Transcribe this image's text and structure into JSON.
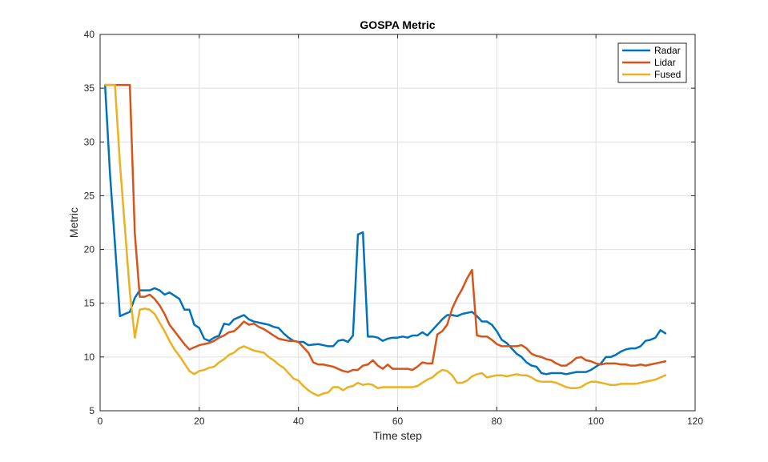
{
  "chart_data": {
    "type": "line",
    "title": "GOSPA Metric",
    "xlabel": "Time step",
    "ylabel": "Metric",
    "xlim": [
      0,
      120
    ],
    "ylim": [
      5,
      40
    ],
    "xticks": [
      0,
      20,
      40,
      60,
      80,
      100,
      120
    ],
    "yticks": [
      5,
      10,
      15,
      20,
      25,
      30,
      35,
      40
    ],
    "xtick_labels": [
      "0",
      "20",
      "40",
      "60",
      "80",
      "100",
      "120"
    ],
    "ytick_labels": [
      "5",
      "10",
      "15",
      "20",
      "25",
      "30",
      "35",
      "40"
    ],
    "grid": true,
    "legend_position": "top-right",
    "series": [
      {
        "name": "Radar",
        "color": "#0072BD",
        "x": [
          1,
          2,
          3,
          4,
          5,
          6,
          7,
          8,
          9,
          10,
          11,
          12,
          13,
          14,
          15,
          16,
          17,
          18,
          19,
          20,
          21,
          22,
          23,
          24,
          25,
          26,
          27,
          28,
          29,
          30,
          31,
          32,
          33,
          34,
          35,
          36,
          37,
          38,
          39,
          40,
          41,
          42,
          43,
          44,
          45,
          46,
          47,
          48,
          49,
          50,
          51,
          52,
          53,
          54,
          55,
          56,
          57,
          58,
          59,
          60,
          61,
          62,
          63,
          64,
          65,
          66,
          67,
          68,
          69,
          70,
          71,
          72,
          73,
          74,
          75,
          76,
          77,
          78,
          79,
          80,
          81,
          82,
          83,
          84,
          85,
          86,
          87,
          88,
          89,
          90,
          91,
          92,
          93,
          94,
          95,
          96,
          97,
          98,
          99,
          100,
          101,
          102,
          103,
          104,
          105,
          106,
          107,
          108,
          109,
          110,
          111,
          112,
          113,
          114
        ],
        "values": [
          35.3,
          27.0,
          20.5,
          13.8,
          14.0,
          14.2,
          15.5,
          16.2,
          16.2,
          16.2,
          16.4,
          16.2,
          15.8,
          16.0,
          15.7,
          15.4,
          14.4,
          14.4,
          13.0,
          12.7,
          11.7,
          11.5,
          11.8,
          12.0,
          13.1,
          13.0,
          13.5,
          13.7,
          13.9,
          13.5,
          13.3,
          13.2,
          13.1,
          13.0,
          12.8,
          12.7,
          12.2,
          11.8,
          11.5,
          11.4,
          11.4,
          11.1,
          11.15,
          11.2,
          11.1,
          11.0,
          11.0,
          11.5,
          11.6,
          11.4,
          12.0,
          21.4,
          21.6,
          11.9,
          11.9,
          11.8,
          11.5,
          11.7,
          11.8,
          11.8,
          11.9,
          11.8,
          12.0,
          12.0,
          12.3,
          12.0,
          12.5,
          13.0,
          13.5,
          13.9,
          13.9,
          13.8,
          14.0,
          14.1,
          14.2,
          13.8,
          13.3,
          13.3,
          13.0,
          12.4,
          11.6,
          11.3,
          10.8,
          10.3,
          10.0,
          9.5,
          9.2,
          9.1,
          8.5,
          8.4,
          8.5,
          8.5,
          8.5,
          8.4,
          8.5,
          8.6,
          8.6,
          8.6,
          8.8,
          9.1,
          9.4,
          10.0,
          10.0,
          10.2,
          10.5,
          10.7,
          10.8,
          10.8,
          11.0,
          11.5,
          11.6,
          11.8,
          12.5,
          12.2
        ]
      },
      {
        "name": "Lidar",
        "color": "#D95319",
        "x": [
          1,
          2,
          3,
          4,
          5,
          6,
          7,
          8,
          9,
          10,
          11,
          12,
          13,
          14,
          15,
          16,
          17,
          18,
          19,
          20,
          21,
          22,
          23,
          24,
          25,
          26,
          27,
          28,
          29,
          30,
          31,
          32,
          33,
          34,
          35,
          36,
          37,
          38,
          39,
          40,
          41,
          42,
          43,
          44,
          45,
          46,
          47,
          48,
          49,
          50,
          51,
          52,
          53,
          54,
          55,
          56,
          57,
          58,
          59,
          60,
          61,
          62,
          63,
          64,
          65,
          66,
          67,
          68,
          69,
          70,
          71,
          72,
          73,
          74,
          75,
          76,
          77,
          78,
          79,
          80,
          81,
          82,
          83,
          84,
          85,
          86,
          87,
          88,
          89,
          90,
          91,
          92,
          93,
          94,
          95,
          96,
          97,
          98,
          99,
          100,
          101,
          102,
          103,
          104,
          105,
          106,
          107,
          108,
          109,
          110,
          111,
          112,
          113,
          114
        ],
        "values": [
          35.3,
          35.3,
          35.3,
          35.3,
          35.3,
          35.3,
          21.5,
          15.6,
          15.6,
          15.8,
          15.4,
          14.8,
          14.0,
          13.0,
          12.4,
          11.8,
          11.2,
          10.7,
          10.9,
          11.1,
          11.2,
          11.3,
          11.5,
          11.8,
          12.0,
          12.3,
          12.4,
          12.8,
          13.3,
          13.0,
          13.1,
          12.8,
          12.6,
          12.3,
          12.0,
          11.7,
          11.6,
          11.5,
          11.5,
          11.4,
          10.9,
          10.4,
          9.5,
          9.3,
          9.3,
          9.2,
          9.1,
          8.9,
          8.7,
          8.6,
          8.8,
          8.8,
          9.2,
          9.3,
          9.7,
          9.2,
          8.9,
          9.3,
          8.9,
          8.9,
          8.9,
          8.9,
          8.8,
          9.1,
          9.5,
          9.4,
          9.4,
          12.1,
          12.4,
          13.0,
          14.5,
          15.5,
          16.3,
          17.3,
          18.1,
          12.0,
          11.9,
          11.9,
          11.6,
          11.2,
          11.0,
          11.0,
          11.0,
          11.0,
          11.1,
          10.8,
          10.3,
          10.1,
          10.0,
          9.8,
          9.7,
          9.4,
          9.2,
          9.2,
          9.5,
          9.9,
          10.0,
          9.7,
          9.6,
          9.4,
          9.3,
          9.4,
          9.4,
          9.4,
          9.3,
          9.3,
          9.2,
          9.2,
          9.3,
          9.2,
          9.3,
          9.4,
          9.5,
          9.6
        ]
      },
      {
        "name": "Fused",
        "color": "#EDB120",
        "x": [
          1,
          2,
          3,
          4,
          5,
          6,
          7,
          8,
          9,
          10,
          11,
          12,
          13,
          14,
          15,
          16,
          17,
          18,
          19,
          20,
          21,
          22,
          23,
          24,
          25,
          26,
          27,
          28,
          29,
          30,
          31,
          32,
          33,
          34,
          35,
          36,
          37,
          38,
          39,
          40,
          41,
          42,
          43,
          44,
          45,
          46,
          47,
          48,
          49,
          50,
          51,
          52,
          53,
          54,
          55,
          56,
          57,
          58,
          59,
          60,
          61,
          62,
          63,
          64,
          65,
          66,
          67,
          68,
          69,
          70,
          71,
          72,
          73,
          74,
          75,
          76,
          77,
          78,
          79,
          80,
          81,
          82,
          83,
          84,
          85,
          86,
          87,
          88,
          89,
          90,
          91,
          92,
          93,
          94,
          95,
          96,
          97,
          98,
          99,
          100,
          101,
          102,
          103,
          104,
          105,
          106,
          107,
          108,
          109,
          110,
          111,
          112,
          113,
          114
        ],
        "values": [
          35.3,
          35.3,
          35.3,
          28.0,
          22.0,
          16.0,
          11.8,
          14.4,
          14.5,
          14.4,
          14.0,
          13.2,
          12.4,
          11.5,
          10.7,
          10.1,
          9.4,
          8.7,
          8.4,
          8.7,
          8.8,
          9.0,
          9.1,
          9.5,
          9.8,
          10.2,
          10.4,
          10.8,
          11.0,
          10.8,
          10.6,
          10.5,
          10.4,
          10.0,
          9.7,
          9.3,
          9.0,
          8.5,
          8.0,
          7.8,
          7.3,
          6.9,
          6.6,
          6.4,
          6.6,
          6.7,
          7.2,
          7.2,
          6.9,
          7.2,
          7.3,
          7.6,
          7.4,
          7.5,
          7.4,
          7.1,
          7.2,
          7.2,
          7.2,
          7.2,
          7.2,
          7.2,
          7.2,
          7.3,
          7.6,
          7.9,
          8.1,
          8.5,
          8.8,
          8.7,
          8.3,
          7.6,
          7.6,
          7.8,
          8.2,
          8.4,
          8.5,
          8.1,
          8.2,
          8.3,
          8.3,
          8.2,
          8.3,
          8.4,
          8.3,
          8.3,
          8.1,
          7.8,
          7.7,
          7.7,
          7.7,
          7.6,
          7.4,
          7.2,
          7.1,
          7.1,
          7.2,
          7.5,
          7.7,
          7.7,
          7.6,
          7.5,
          7.4,
          7.4,
          7.5,
          7.5,
          7.5,
          7.5,
          7.6,
          7.7,
          7.8,
          7.9,
          8.1,
          8.3
        ]
      }
    ]
  }
}
